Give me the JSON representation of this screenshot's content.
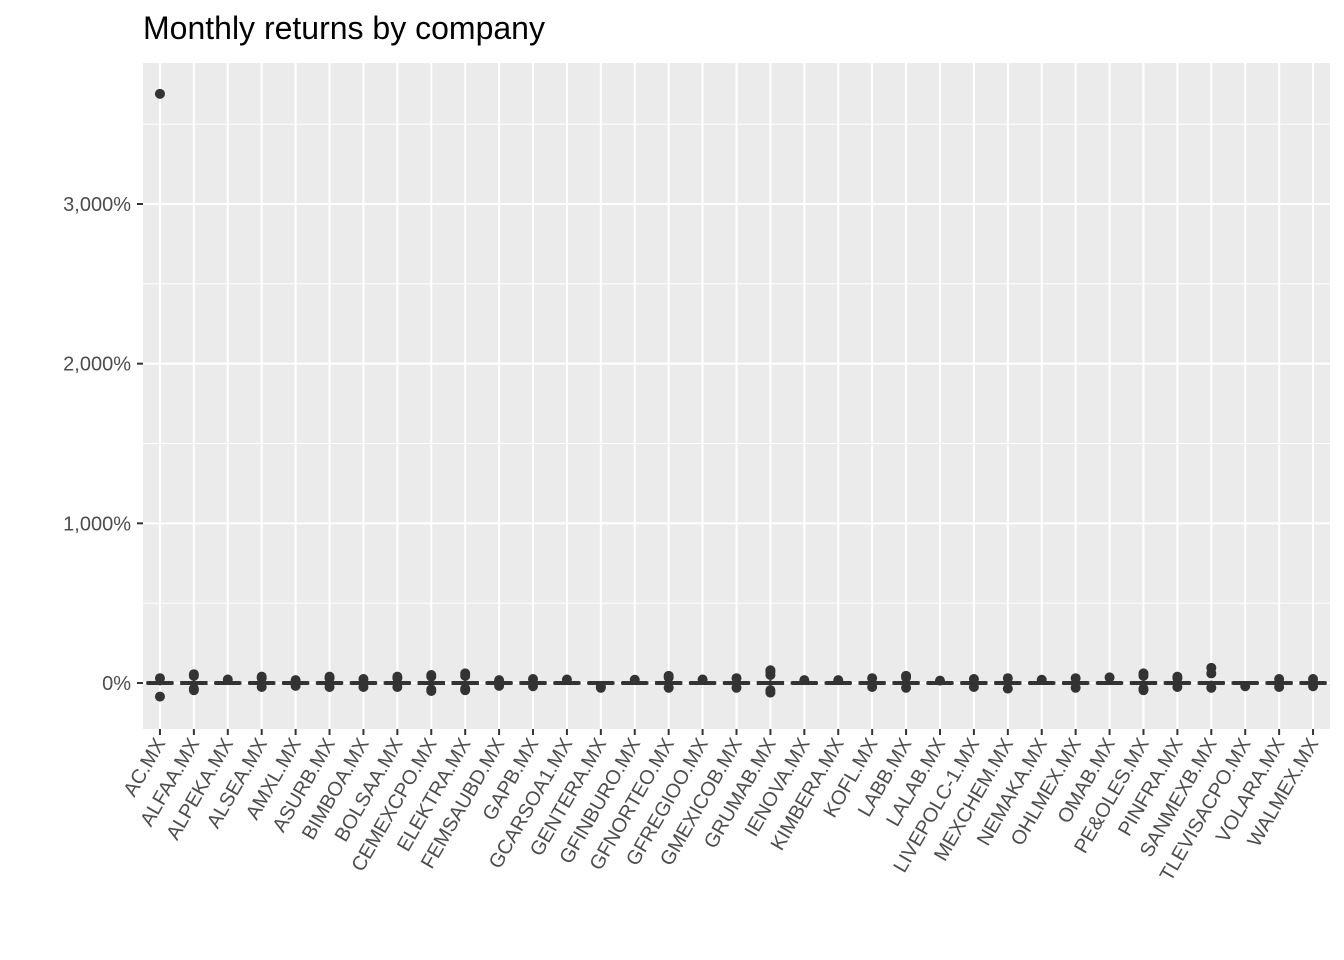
{
  "chart_data": {
    "type": "boxplot",
    "title": "Monthly returns by company",
    "xlabel": "",
    "ylabel": "",
    "ylim": [
      -300,
      4000
    ],
    "yticks": [
      0,
      1000,
      2000,
      3000
    ],
    "ytick_labels": [
      "0%",
      "1,000%",
      "2,000%",
      "3,000%"
    ],
    "grid": true,
    "box_color": "#333333",
    "panel_color": "#ebebeb",
    "categories": [
      "AC.MX",
      "ALFAA.MX",
      "ALPEKA.MX",
      "ALSEA.MX",
      "AMXL.MX",
      "ASURB.MX",
      "BIMBOA.MX",
      "BOLSAA.MX",
      "CEMEXCPO.MX",
      "ELEKTRA.MX",
      "FEMSAUBD.MX",
      "GAPB.MX",
      "GCARSOA1.MX",
      "GENTERA.MX",
      "GFINBURO.MX",
      "GFNORTEO.MX",
      "GFREGIOO.MX",
      "GMEXICOB.MX",
      "GRUMAB.MX",
      "IENOVA.MX",
      "KIMBERA.MX",
      "KOFL.MX",
      "LABB.MX",
      "LALAB.MX",
      "LIVEPOLC-1.MX",
      "MEXCHEM.MX",
      "NEMAKA.MX",
      "OHLMEX.MX",
      "OMAB.MX",
      "PE&OLES.MX",
      "PINFRA.MX",
      "SANMEXB.MX",
      "TLEVISACPO.MX",
      "VOLARA.MX",
      "WALMEX.MX"
    ],
    "series": [
      {
        "whisker_low": -15,
        "q1": -4,
        "median": 0,
        "q3": 4,
        "whisker_high": 15,
        "outliers": [
          3690,
          30,
          -85
        ]
      },
      {
        "whisker_low": -25,
        "q1": -6,
        "median": 0,
        "q3": 6,
        "whisker_high": 25,
        "outliers": [
          45,
          55,
          -35,
          -45
        ]
      },
      {
        "whisker_low": -10,
        "q1": -3,
        "median": 0,
        "q3": 3,
        "whisker_high": 10,
        "outliers": [
          22
        ]
      },
      {
        "whisker_low": -15,
        "q1": -4,
        "median": 0,
        "q3": 4,
        "whisker_high": 15,
        "outliers": [
          30,
          40,
          -25
        ]
      },
      {
        "whisker_low": -12,
        "q1": -4,
        "median": 0,
        "q3": 4,
        "whisker_high": 12,
        "outliers": [
          18,
          -18
        ]
      },
      {
        "whisker_low": -15,
        "q1": -4,
        "median": 0,
        "q3": 4,
        "whisker_high": 15,
        "outliers": [
          30,
          40,
          -25
        ]
      },
      {
        "whisker_low": -15,
        "q1": -4,
        "median": 0,
        "q3": 4,
        "whisker_high": 15,
        "outliers": [
          25,
          -25
        ]
      },
      {
        "whisker_low": -15,
        "q1": -4,
        "median": 0,
        "q3": 4,
        "whisker_high": 15,
        "outliers": [
          30,
          40,
          -25
        ]
      },
      {
        "whisker_low": -25,
        "q1": -6,
        "median": 0,
        "q3": 6,
        "whisker_high": 25,
        "outliers": [
          40,
          50,
          -40,
          -50
        ]
      },
      {
        "whisker_low": -20,
        "q1": -6,
        "median": 0,
        "q3": 6,
        "whisker_high": 20,
        "outliers": [
          45,
          60,
          -35,
          -45
        ]
      },
      {
        "whisker_low": -12,
        "q1": -3,
        "median": 0,
        "q3": 3,
        "whisker_high": 12,
        "outliers": [
          18,
          -18
        ]
      },
      {
        "whisker_low": -12,
        "q1": -4,
        "median": 0,
        "q3": 4,
        "whisker_high": 12,
        "outliers": [
          25,
          -20
        ]
      },
      {
        "whisker_low": -10,
        "q1": -3,
        "median": 0,
        "q3": 3,
        "whisker_high": 10,
        "outliers": [
          22
        ]
      },
      {
        "whisker_low": -8,
        "q1": -3,
        "median": 0,
        "q3": 3,
        "whisker_high": 8,
        "outliers": [
          -22,
          -30
        ]
      },
      {
        "whisker_low": -10,
        "q1": -3,
        "median": 0,
        "q3": 3,
        "whisker_high": 10,
        "outliers": [
          20
        ]
      },
      {
        "whisker_low": -15,
        "q1": -5,
        "median": 0,
        "q3": 5,
        "whisker_high": 15,
        "outliers": [
          35,
          45,
          -30
        ]
      },
      {
        "whisker_low": -12,
        "q1": -4,
        "median": 0,
        "q3": 4,
        "whisker_high": 12,
        "outliers": [
          22
        ]
      },
      {
        "whisker_low": -15,
        "q1": -4,
        "median": 0,
        "q3": 4,
        "whisker_high": 15,
        "outliers": [
          30,
          -30
        ]
      },
      {
        "whisker_low": -20,
        "q1": -6,
        "median": 0,
        "q3": 6,
        "whisker_high": 20,
        "outliers": [
          50,
          70,
          80,
          -45,
          -60
        ]
      },
      {
        "whisker_low": -10,
        "q1": -3,
        "median": 0,
        "q3": 3,
        "whisker_high": 10,
        "outliers": [
          18
        ]
      },
      {
        "whisker_low": -10,
        "q1": -3,
        "median": 0,
        "q3": 3,
        "whisker_high": 10,
        "outliers": [
          18
        ]
      },
      {
        "whisker_low": -15,
        "q1": -4,
        "median": 0,
        "q3": 4,
        "whisker_high": 15,
        "outliers": [
          30,
          -25
        ]
      },
      {
        "whisker_low": -15,
        "q1": -4,
        "median": 0,
        "q3": 4,
        "whisker_high": 15,
        "outliers": [
          35,
          45,
          -30
        ]
      },
      {
        "whisker_low": -8,
        "q1": -3,
        "median": 0,
        "q3": 3,
        "whisker_high": 8,
        "outliers": [
          15
        ]
      },
      {
        "whisker_low": -15,
        "q1": -4,
        "median": 0,
        "q3": 4,
        "whisker_high": 15,
        "outliers": [
          25,
          -25
        ]
      },
      {
        "whisker_low": -15,
        "q1": -4,
        "median": 0,
        "q3": 4,
        "whisker_high": 15,
        "outliers": [
          30,
          -35
        ]
      },
      {
        "whisker_low": -10,
        "q1": -3,
        "median": 0,
        "q3": 3,
        "whisker_high": 10,
        "outliers": [
          20
        ]
      },
      {
        "whisker_low": -15,
        "q1": -4,
        "median": 0,
        "q3": 4,
        "whisker_high": 15,
        "outliers": [
          30,
          -30
        ]
      },
      {
        "whisker_low": -12,
        "q1": -3,
        "median": 0,
        "q3": 3,
        "whisker_high": 12,
        "outliers": [
          35
        ]
      },
      {
        "whisker_low": -20,
        "q1": -5,
        "median": 0,
        "q3": 5,
        "whisker_high": 20,
        "outliers": [
          45,
          60,
          -35,
          -45
        ]
      },
      {
        "whisker_low": -15,
        "q1": -4,
        "median": 0,
        "q3": 4,
        "whisker_high": 15,
        "outliers": [
          30,
          40,
          -25
        ]
      },
      {
        "whisker_low": -15,
        "q1": -4,
        "median": 0,
        "q3": 4,
        "whisker_high": 15,
        "outliers": [
          60,
          95,
          -30
        ]
      },
      {
        "whisker_low": -10,
        "q1": -3,
        "median": 0,
        "q3": 3,
        "whisker_high": 10,
        "outliers": [
          -20
        ]
      },
      {
        "whisker_low": -15,
        "q1": -4,
        "median": 0,
        "q3": 4,
        "whisker_high": 15,
        "outliers": [
          25,
          -25
        ]
      },
      {
        "whisker_low": -15,
        "q1": -4,
        "median": 0,
        "q3": 4,
        "whisker_high": 15,
        "outliers": [
          25,
          -20
        ]
      }
    ]
  }
}
